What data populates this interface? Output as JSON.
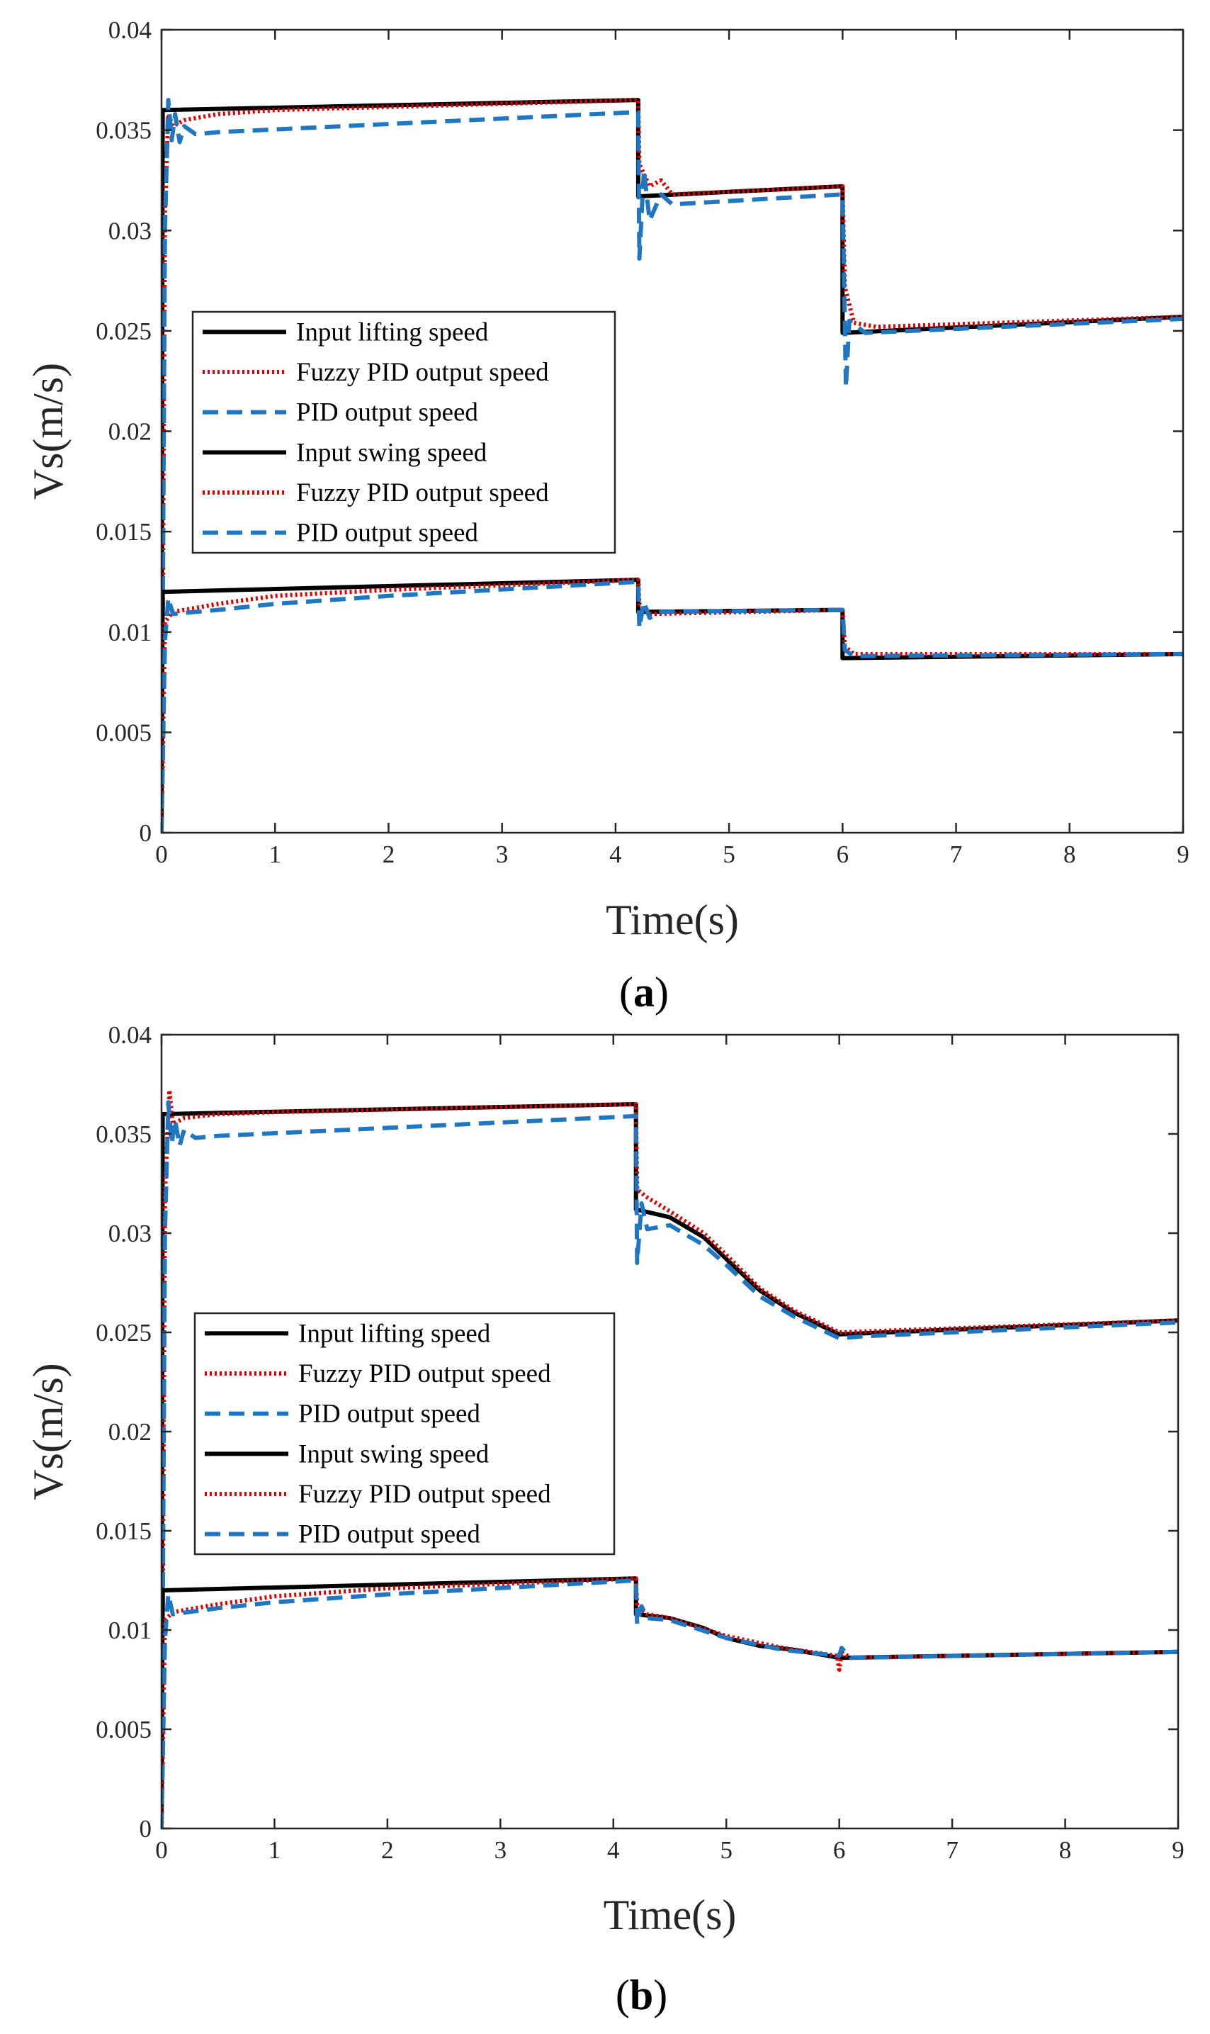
{
  "chart_data": [
    {
      "type": "line",
      "panel_label": "a",
      "xlabel": "Time(s)",
      "ylabel": "Vs(m/s)",
      "xlim": [
        0,
        9
      ],
      "ylim": [
        0,
        0.04
      ],
      "xticks": [
        "0",
        "1",
        "2",
        "3",
        "4",
        "5",
        "6",
        "7",
        "8",
        "9"
      ],
      "yticks": [
        "0",
        "0.005",
        "0.01",
        "0.015",
        "0.02",
        "0.025",
        "0.03",
        "0.035",
        "0.04"
      ],
      "grid": false,
      "legend_position": "left-center",
      "series": [
        {
          "name": "Input lifting speed",
          "color": "#000000",
          "style": "solid",
          "points": [
            [
              0,
              0
            ],
            [
              0.01,
              0.036
            ],
            [
              4.2,
              0.0365
            ],
            [
              4.2,
              0.0317
            ],
            [
              6.0,
              0.0322
            ],
            [
              6.0,
              0.0249
            ],
            [
              9,
              0.0257
            ]
          ]
        },
        {
          "name": "Fuzzy PID output speed",
          "color": "#e00000",
          "style": "dotted",
          "points": [
            [
              0,
              0
            ],
            [
              0.03,
              0.031
            ],
            [
              0.06,
              0.0358
            ],
            [
              0.1,
              0.0352
            ],
            [
              0.2,
              0.0355
            ],
            [
              0.5,
              0.0358
            ],
            [
              1.0,
              0.036
            ],
            [
              4.2,
              0.0365
            ],
            [
              4.21,
              0.0333
            ],
            [
              4.3,
              0.0322
            ],
            [
              4.4,
              0.0325
            ],
            [
              4.5,
              0.0318
            ],
            [
              6.0,
              0.0322
            ],
            [
              6.02,
              0.0272
            ],
            [
              6.1,
              0.0254
            ],
            [
              6.3,
              0.0252
            ],
            [
              9,
              0.0257
            ]
          ]
        },
        {
          "name": "PID output speed",
          "color": "#1f77c4",
          "style": "dashed",
          "points": [
            [
              0,
              0
            ],
            [
              0.03,
              0.03
            ],
            [
              0.06,
              0.0365
            ],
            [
              0.09,
              0.0345
            ],
            [
              0.12,
              0.0358
            ],
            [
              0.16,
              0.0344
            ],
            [
              0.2,
              0.0352
            ],
            [
              0.3,
              0.0348
            ],
            [
              0.5,
              0.0349
            ],
            [
              4.2,
              0.0359
            ],
            [
              4.21,
              0.0286
            ],
            [
              4.25,
              0.033
            ],
            [
              4.3,
              0.0305
            ],
            [
              4.4,
              0.0318
            ],
            [
              4.5,
              0.0313
            ],
            [
              6.0,
              0.0318
            ],
            [
              6.03,
              0.0222
            ],
            [
              6.06,
              0.0255
            ],
            [
              6.2,
              0.0249
            ],
            [
              9,
              0.0256
            ]
          ]
        },
        {
          "name": "Input swing speed",
          "color": "#000000",
          "style": "solid",
          "points": [
            [
              0,
              0
            ],
            [
              0.01,
              0.012
            ],
            [
              4.2,
              0.0126
            ],
            [
              4.2,
              0.011
            ],
            [
              6.0,
              0.0111
            ],
            [
              6.0,
              0.0087
            ],
            [
              9,
              0.0089
            ]
          ]
        },
        {
          "name": "Fuzzy PID output speed",
          "color": "#e00000",
          "style": "dotted",
          "points": [
            [
              0,
              0
            ],
            [
              0.03,
              0.0105
            ],
            [
              0.1,
              0.011
            ],
            [
              0.5,
              0.0114
            ],
            [
              1.0,
              0.0118
            ],
            [
              2.0,
              0.0121
            ],
            [
              4.2,
              0.0126
            ],
            [
              4.21,
              0.0114
            ],
            [
              4.3,
              0.0109
            ],
            [
              6.0,
              0.0111
            ],
            [
              6.02,
              0.0093
            ],
            [
              6.1,
              0.0089
            ],
            [
              9,
              0.0089
            ]
          ]
        },
        {
          "name": "PID output speed",
          "color": "#1f77c4",
          "style": "dashed",
          "points": [
            [
              0,
              0
            ],
            [
              0.03,
              0.0095
            ],
            [
              0.06,
              0.0117
            ],
            [
              0.1,
              0.0109
            ],
            [
              0.5,
              0.0111
            ],
            [
              1.0,
              0.0114
            ],
            [
              2.0,
              0.0118
            ],
            [
              4.2,
              0.0125
            ],
            [
              4.21,
              0.0102
            ],
            [
              4.25,
              0.0115
            ],
            [
              4.3,
              0.0107
            ],
            [
              4.4,
              0.011
            ],
            [
              6.0,
              0.0111
            ],
            [
              6.02,
              0.0091
            ],
            [
              6.1,
              0.0088
            ],
            [
              9,
              0.0089
            ]
          ]
        }
      ]
    },
    {
      "type": "line",
      "panel_label": "b",
      "xlabel": "Time(s)",
      "ylabel": "Vs(m/s)",
      "xlim": [
        0,
        9
      ],
      "ylim": [
        0,
        0.04
      ],
      "xticks": [
        "0",
        "1",
        "2",
        "3",
        "4",
        "5",
        "6",
        "7",
        "8",
        "9"
      ],
      "yticks": [
        "0",
        "0.005",
        "0.01",
        "0.015",
        "0.02",
        "0.025",
        "0.03",
        "0.035",
        "0.04"
      ],
      "grid": false,
      "legend_position": "left-center",
      "series": [
        {
          "name": "Input lifting speed",
          "color": "#000000",
          "style": "solid",
          "points": [
            [
              0,
              0
            ],
            [
              0.01,
              0.036
            ],
            [
              4.2,
              0.0365
            ],
            [
              4.2,
              0.0312
            ],
            [
              4.5,
              0.0308
            ],
            [
              4.8,
              0.0298
            ],
            [
              5.0,
              0.0287
            ],
            [
              5.3,
              0.0271
            ],
            [
              5.6,
              0.026
            ],
            [
              6.0,
              0.0249
            ],
            [
              9,
              0.0256
            ]
          ]
        },
        {
          "name": "Fuzzy PID output speed",
          "color": "#e00000",
          "style": "dotted",
          "points": [
            [
              0,
              0
            ],
            [
              0.03,
              0.032
            ],
            [
              0.07,
              0.0372
            ],
            [
              0.1,
              0.0355
            ],
            [
              0.2,
              0.0358
            ],
            [
              0.5,
              0.036
            ],
            [
              1.0,
              0.0361
            ],
            [
              4.2,
              0.0365
            ],
            [
              4.21,
              0.0322
            ],
            [
              4.3,
              0.0318
            ],
            [
              4.5,
              0.0311
            ],
            [
              4.8,
              0.03
            ],
            [
              5.0,
              0.0289
            ],
            [
              5.3,
              0.0272
            ],
            [
              5.6,
              0.0261
            ],
            [
              6.0,
              0.025
            ],
            [
              9,
              0.0256
            ]
          ]
        },
        {
          "name": "PID output speed",
          "color": "#1f77c4",
          "style": "dashed",
          "points": [
            [
              0,
              0
            ],
            [
              0.03,
              0.03
            ],
            [
              0.06,
              0.0366
            ],
            [
              0.09,
              0.0345
            ],
            [
              0.12,
              0.0357
            ],
            [
              0.16,
              0.0344
            ],
            [
              0.2,
              0.0352
            ],
            [
              0.3,
              0.0348
            ],
            [
              0.5,
              0.0349
            ],
            [
              4.2,
              0.0359
            ],
            [
              4.21,
              0.0285
            ],
            [
              4.25,
              0.0315
            ],
            [
              4.3,
              0.0302
            ],
            [
              4.5,
              0.0304
            ],
            [
              4.8,
              0.0294
            ],
            [
              5.0,
              0.0284
            ],
            [
              5.3,
              0.0268
            ],
            [
              5.6,
              0.0258
            ],
            [
              6.0,
              0.0247
            ],
            [
              6.2,
              0.0248
            ],
            [
              9,
              0.0255
            ]
          ]
        },
        {
          "name": "Input swing speed",
          "color": "#000000",
          "style": "solid",
          "points": [
            [
              0,
              0
            ],
            [
              0.01,
              0.012
            ],
            [
              4.2,
              0.0126
            ],
            [
              4.2,
              0.0108
            ],
            [
              4.5,
              0.0106
            ],
            [
              4.8,
              0.0101
            ],
            [
              5.0,
              0.0096
            ],
            [
              5.3,
              0.0092
            ],
            [
              5.6,
              0.009
            ],
            [
              6.0,
              0.0086
            ],
            [
              9,
              0.0089
            ]
          ]
        },
        {
          "name": "Fuzzy PID output speed",
          "color": "#e00000",
          "style": "dotted",
          "points": [
            [
              0,
              0
            ],
            [
              0.03,
              0.0105
            ],
            [
              0.1,
              0.0109
            ],
            [
              0.5,
              0.0113
            ],
            [
              1.0,
              0.0117
            ],
            [
              2.0,
              0.0121
            ],
            [
              4.2,
              0.0126
            ],
            [
              4.21,
              0.0112
            ],
            [
              4.3,
              0.0108
            ],
            [
              4.5,
              0.0106
            ],
            [
              5.0,
              0.0097
            ],
            [
              5.5,
              0.0091
            ],
            [
              5.98,
              0.0087
            ],
            [
              6.0,
              0.008
            ],
            [
              6.02,
              0.0089
            ],
            [
              6.1,
              0.0086
            ],
            [
              9,
              0.0089
            ]
          ]
        },
        {
          "name": "PID output speed",
          "color": "#1f77c4",
          "style": "dashed",
          "points": [
            [
              0,
              0
            ],
            [
              0.03,
              0.0095
            ],
            [
              0.06,
              0.0118
            ],
            [
              0.1,
              0.0108
            ],
            [
              0.5,
              0.0111
            ],
            [
              1.0,
              0.0114
            ],
            [
              2.0,
              0.0118
            ],
            [
              4.2,
              0.0125
            ],
            [
              4.21,
              0.0103
            ],
            [
              4.25,
              0.0112
            ],
            [
              4.3,
              0.0106
            ],
            [
              4.5,
              0.0105
            ],
            [
              5.0,
              0.0096
            ],
            [
              5.5,
              0.009
            ],
            [
              6.0,
              0.0087
            ],
            [
              6.02,
              0.0091
            ],
            [
              6.1,
              0.0086
            ],
            [
              9,
              0.0089
            ]
          ]
        }
      ]
    }
  ]
}
